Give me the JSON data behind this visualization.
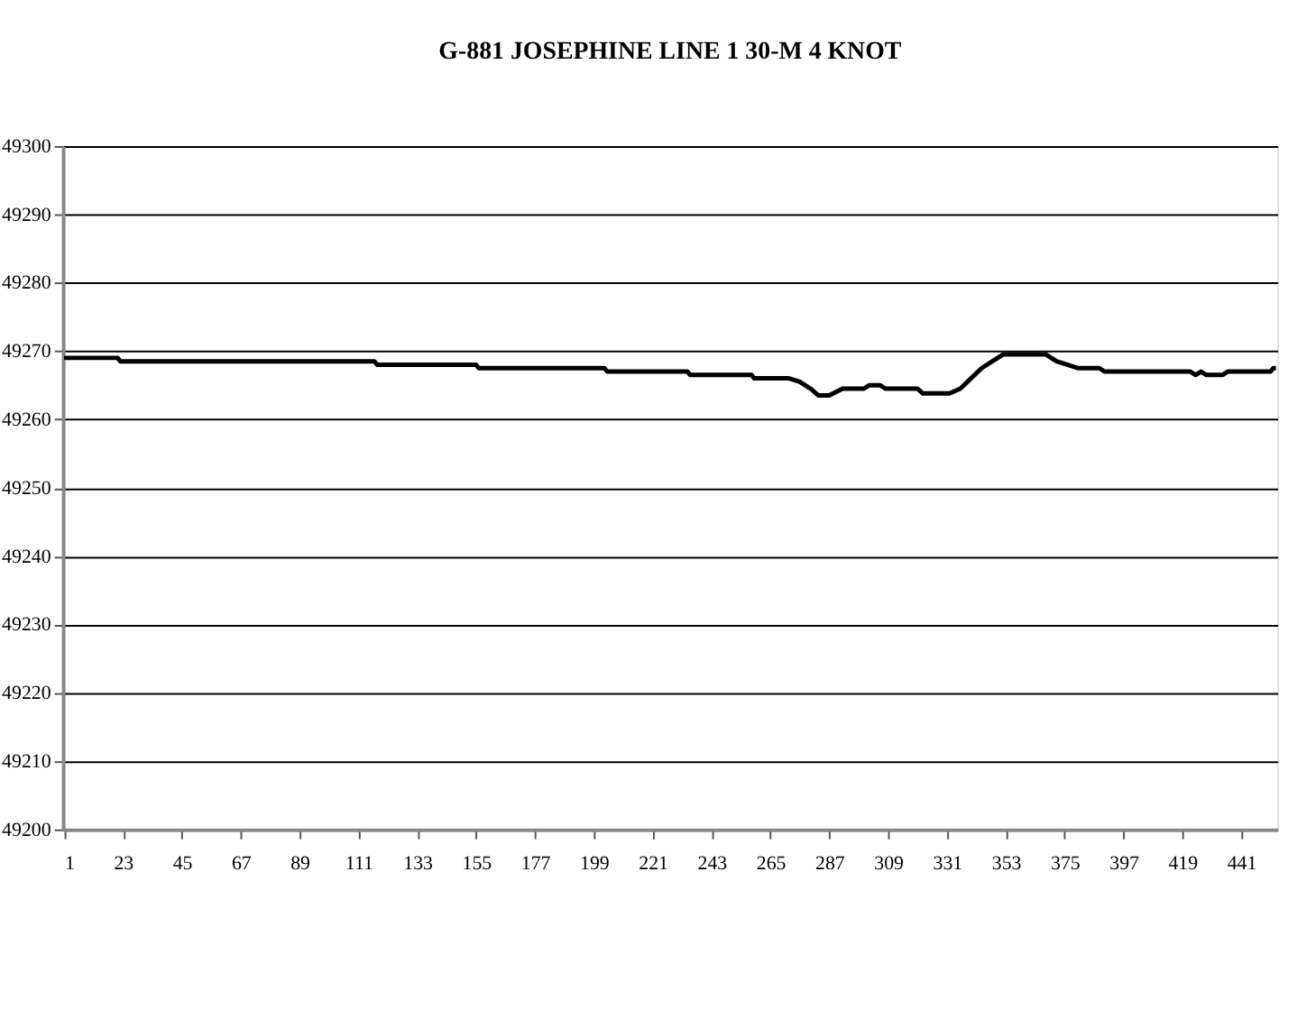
{
  "chart_data": {
    "type": "line",
    "title": "G-881 JOSEPHINE LINE 1 30-M 4 KNOT",
    "x": [
      1,
      21,
      22,
      117,
      118,
      155,
      156,
      203,
      204,
      234,
      235,
      258,
      259,
      272,
      276,
      280,
      283,
      287,
      292,
      300,
      302,
      306,
      308,
      320,
      322,
      332,
      336,
      340,
      344,
      348,
      352,
      368,
      372,
      376,
      380,
      388,
      390,
      422,
      424,
      426,
      428,
      434,
      436,
      452,
      453,
      454
    ],
    "series": [
      {
        "color": "#000000",
        "values": [
          49269,
          49269,
          49268.5,
          49268.5,
          49268,
          49268,
          49267.5,
          49267.5,
          49267,
          49267,
          49266.5,
          49266.5,
          49266,
          49266,
          49265.5,
          49264.5,
          49263.5,
          49263.5,
          49264.5,
          49264.5,
          49265,
          49265,
          49264.5,
          49264.5,
          49263.8,
          49263.8,
          49264.5,
          49266,
          49267.5,
          49268.5,
          49269.5,
          49269.5,
          49268.5,
          49268,
          49267.5,
          49267.5,
          49267,
          49267,
          49266.5,
          49267,
          49266.5,
          49266.5,
          49267,
          49267,
          49267.5,
          49267.5
        ]
      }
    ],
    "xlim": [
      0.5,
      454.5
    ],
    "xticks": [
      1,
      23,
      45,
      67,
      89,
      111,
      133,
      155,
      177,
      199,
      221,
      243,
      265,
      287,
      309,
      331,
      353,
      375,
      397,
      419,
      441
    ],
    "ylim": [
      49200,
      49300
    ],
    "yticks": [
      49200,
      49210,
      49220,
      49230,
      49240,
      49250,
      49260,
      49270,
      49280,
      49290,
      49300
    ],
    "grid": "y",
    "marker": "none",
    "line_style": "solid"
  }
}
